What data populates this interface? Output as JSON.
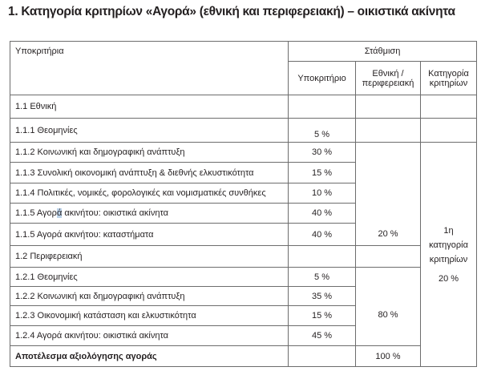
{
  "title": "1. Κατηγορία κριτηρίων «Αγορά» (εθνική και περιφερειακή) – οικιστικά ακίνητα",
  "header": {
    "subcriteria": "Υποκριτήρια",
    "weighting": "Στάθμιση",
    "col_subcriterion": "Υποκριτήριο",
    "col_national_regional_1": "Εθνική /",
    "col_national_regional_2": "περιφερειακή",
    "col_category_1": "Κατηγορία",
    "col_category_2": "κριτηρίων"
  },
  "rows": [
    {
      "label": "1.1  Εθνική",
      "sub": ""
    },
    {
      "label": "1.1.1  Θεομηνίες",
      "sub": "5 %"
    },
    {
      "label": "1.1.2  Κοινωνική και δημογραφική ανάπτυξη",
      "sub": "30 %"
    },
    {
      "label": "1.1.3 Συνολική οικονομική ανάπτυξη & διεθνής ελκυστικότητα",
      "sub": "15 %"
    },
    {
      "label": " 1.1.4 Πολιτικές, νομικές, φορολογικές και νομισματικές συνθήκες",
      "sub": "10 %"
    },
    {
      "label_pre": "1.1.5 Αγορ",
      "label_hl": "ά",
      "label_post": " ακινήτου: οικιστικά ακίνητα",
      "sub": "40 %"
    },
    {
      "label": "1.1.5 Αγορά ακινήτου: καταστήματα",
      "sub": "40 %"
    },
    {
      "label": "1.2   Περιφερειακή",
      "sub": ""
    },
    {
      "label": "1.2.1  Θεομηνίες",
      "sub": "5 %"
    },
    {
      "label": "1.2.2  Κοινωνική και δημογραφική ανάπτυξη",
      "sub": "35 %"
    },
    {
      "label": "1.2.3  Οικονομική κατάσταση και ελκυστικότητα",
      "sub": "15 %"
    },
    {
      "label": "1.2.4  Αγορά ακινήτου: οικιστικά ακίνητα",
      "sub": "45 %"
    }
  ],
  "national_weight": "20 %",
  "regional_weight": "80 %",
  "category": {
    "line1": "1η",
    "line2": "κατηγορία",
    "line3": "κριτηρίων",
    "weight": "20 %"
  },
  "total": {
    "label": "Αποτέλεσμα αξιολόγησης αγοράς",
    "value": "100 %"
  }
}
